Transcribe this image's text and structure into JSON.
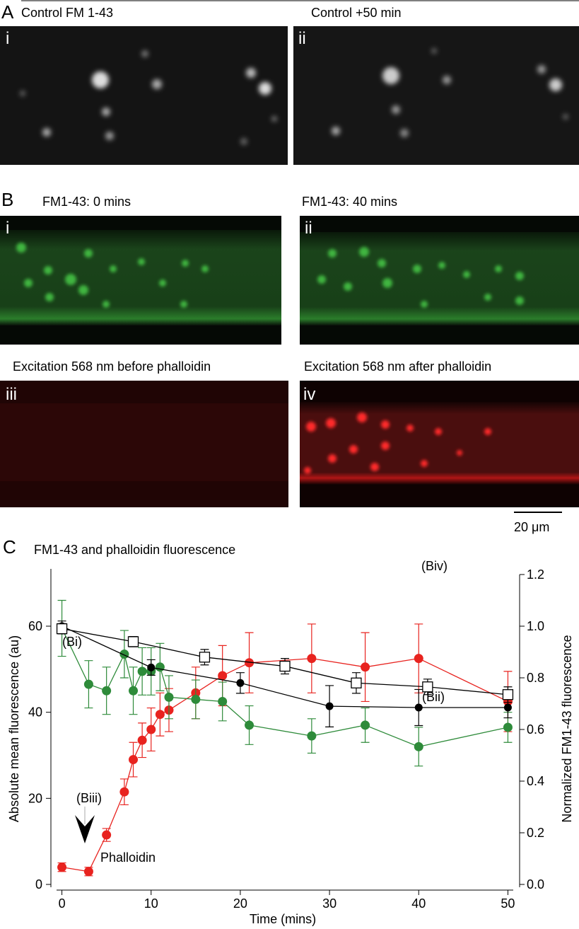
{
  "panel_a": {
    "letter": "A",
    "titles": [
      "Control FM 1-43",
      "Control +50 min"
    ],
    "sublabels": [
      "i",
      "ii"
    ]
  },
  "panel_b": {
    "letter": "B",
    "titles": [
      "FM1-43: 0 mins",
      "FM1-43: 40 mins",
      "Excitation 568 nm before phalloidin",
      "Excitation 568 nm after phalloidin"
    ],
    "sublabels": [
      "i",
      "ii",
      "iii",
      "iv"
    ],
    "scale_bar": "20 μm"
  },
  "chart_data": {
    "type": "line",
    "letter": "C",
    "title": "FM1-43 and phalloidin fluorescence",
    "x_label": "Time (mins)",
    "y_label": "Absolute mean fluorescence (au)",
    "y2_label": "Normalized FM1-43 fluorescence",
    "xlim": [
      -0.6,
      50.6
    ],
    "xticks": [
      0,
      10,
      20,
      30,
      40,
      50
    ],
    "ylim": [
      0,
      72
    ],
    "yticks": [
      0,
      20,
      40,
      60
    ],
    "y2lim": [
      0,
      1.2
    ],
    "y2ticks": [
      {
        "value": 0,
        "label": "0.0"
      },
      0.2,
      0.4,
      0.6,
      0.8,
      {
        "value": 1,
        "label": "1.0"
      },
      1.2
    ],
    "series": [
      {
        "color": "#e8231f",
        "marker": "circle",
        "axis": "y",
        "x": [
          0,
          3,
          5,
          7,
          8,
          9,
          10,
          11,
          12,
          15,
          18,
          21,
          28,
          34,
          40,
          50
        ],
        "values": [
          4,
          3,
          11.5,
          21.5,
          29,
          33.5,
          36,
          39.5,
          40.5,
          44.5,
          48.5,
          51.5,
          52.5,
          50.5,
          52.5,
          42.5
        ],
        "errors": [
          1,
          1,
          1.5,
          3,
          4,
          4,
          5,
          5,
          5,
          6,
          7,
          7,
          8,
          8,
          8,
          7
        ]
      },
      {
        "color": "#2e8b3a",
        "marker": "circle",
        "axis": "y",
        "x": [
          0,
          3,
          5,
          7,
          8,
          9,
          10,
          11,
          12,
          15,
          18,
          21,
          28,
          34,
          40,
          50
        ],
        "values": [
          59.5,
          46.5,
          45,
          53.5,
          45,
          49.5,
          49.5,
          50.5,
          43.5,
          43,
          42.5,
          37,
          34.5,
          37,
          32,
          36.5
        ],
        "errors": [
          6.5,
          5.5,
          5.5,
          5.5,
          5.5,
          5.5,
          5.5,
          5.5,
          5,
          4.5,
          4.5,
          4.5,
          4,
          4,
          4.5,
          3.5
        ]
      },
      {
        "color": "#000000",
        "marker": "circle",
        "axis": "y2",
        "x": [
          0,
          10,
          20,
          30,
          40,
          50
        ],
        "values": [
          1.0,
          0.84,
          0.78,
          0.69,
          0.685,
          0.685
        ],
        "errors": [
          0.02,
          0.03,
          0.04,
          0.08,
          0.07,
          0.04
        ]
      },
      {
        "color": "#000000",
        "marker": "square",
        "axis": "y2",
        "x": [
          0,
          8,
          16,
          25,
          33,
          41,
          50
        ],
        "values": [
          0.99,
          0.94,
          0.88,
          0.845,
          0.78,
          0.765,
          0.735
        ],
        "errors": [
          0.02,
          0.02,
          0.03,
          0.03,
          0.04,
          0.03,
          0.03
        ]
      }
    ],
    "annotations": [
      "(Bi)",
      "(Biii)",
      "Phalloidin",
      "(Biv)",
      "(Bii)"
    ]
  }
}
